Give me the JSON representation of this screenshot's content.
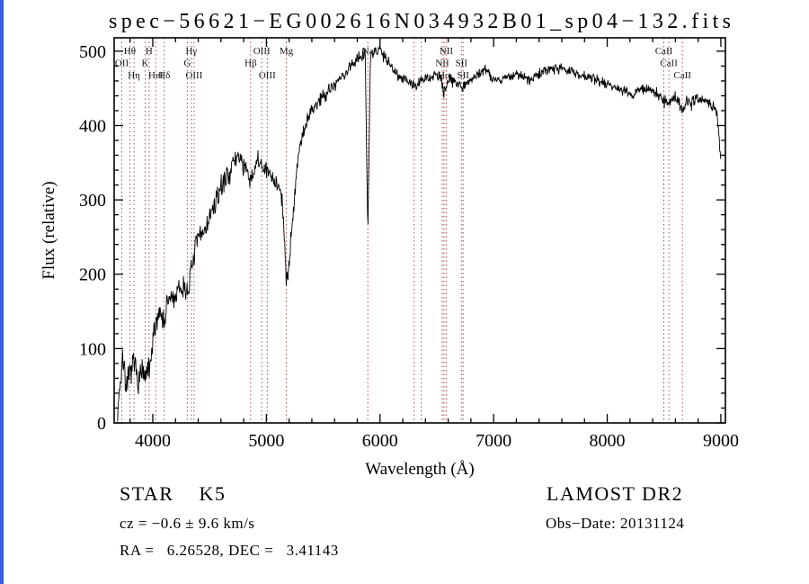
{
  "colors": {
    "background": "#ffffff",
    "spectrum": "#000000",
    "feature_lines": "#9c4f4f",
    "edge_strip": "#3b5ce0"
  },
  "footer": {
    "class_label": "STAR    K5",
    "survey": "LAMOST DR2",
    "cz": "cz = −0.6 ± 9.6 km/s",
    "obs_date": "Obs−Date: 20131124",
    "coords": "RA =   6.26528, DEC =   3.41143"
  },
  "chart_data": {
    "type": "line",
    "title": "spec−56621−EG002616N034932B01_sp04−132.fits",
    "xlabel": "Wavelength (Å)",
    "ylabel": "Flux (relative)",
    "xlim": [
      3660,
      9040
    ],
    "ylim": [
      0,
      518
    ],
    "xticks": [
      4000,
      5000,
      6000,
      7000,
      8000,
      9000
    ],
    "yticks": [
      0,
      100,
      200,
      300,
      400,
      500
    ],
    "x_minor_step": 200,
    "y_minor_step": 20,
    "grid": false,
    "legend_position": "none",
    "line_color": "#000000",
    "feature_line_color": "#9c4f4f",
    "spectral_lines": [
      {
        "label": "Hθ",
        "wavelength": 3798,
        "row": 0
      },
      {
        "label": "H",
        "wavelength": 3968,
        "row": 0
      },
      {
        "label": "Hγ",
        "wavelength": 4340,
        "row": 0
      },
      {
        "label": "OIII",
        "wavelength": 4959,
        "row": 0
      },
      {
        "label": "Mg",
        "wavelength": 5175,
        "row": 0
      },
      {
        "label": "Na",
        "wavelength": 5893,
        "row": 0
      },
      {
        "label": "NII",
        "wavelength": 6583,
        "row": 0
      },
      {
        "label": "CaII",
        "wavelength": 8498,
        "row": 0
      },
      {
        "label": "OII",
        "wavelength": 3727,
        "row": 1
      },
      {
        "label": "K",
        "wavelength": 3933,
        "row": 1
      },
      {
        "label": "G",
        "wavelength": 4304,
        "row": 1
      },
      {
        "label": "Hβ",
        "wavelength": 4861,
        "row": 1
      },
      {
        "label": "NII",
        "wavelength": 6548,
        "row": 1
      },
      {
        "label": "SII",
        "wavelength": 6716,
        "row": 1
      },
      {
        "label": "CaII",
        "wavelength": 8542,
        "row": 1
      },
      {
        "label": "Hη",
        "wavelength": 3835,
        "row": 2
      },
      {
        "label": "HeI",
        "wavelength": 4026,
        "row": 2
      },
      {
        "label": "Hδ",
        "wavelength": 4101,
        "row": 2
      },
      {
        "label": "OIII",
        "wavelength": 4363,
        "row": 2
      },
      {
        "label": "OIII",
        "wavelength": 5007,
        "row": 2
      },
      {
        "label": "Hα",
        "wavelength": 6563,
        "row": 2
      },
      {
        "label": "SII",
        "wavelength": 6731,
        "row": 2
      },
      {
        "label": "CaII",
        "wavelength": 8662,
        "row": 2
      },
      {
        "label": "",
        "wavelength": 6300,
        "row": 0
      },
      {
        "label": "",
        "wavelength": 6363,
        "row": 0
      }
    ],
    "spectrum_envelope": [
      [
        3690,
        5
      ],
      [
        3700,
        40
      ],
      [
        3715,
        55
      ],
      [
        3730,
        75
      ],
      [
        3745,
        88
      ],
      [
        3760,
        55
      ],
      [
        3775,
        45
      ],
      [
        3790,
        60
      ],
      [
        3810,
        70
      ],
      [
        3830,
        80
      ],
      [
        3850,
        70
      ],
      [
        3870,
        60
      ],
      [
        3890,
        64
      ],
      [
        3910,
        70
      ],
      [
        3933,
        52
      ],
      [
        3950,
        74
      ],
      [
        3970,
        66
      ],
      [
        3990,
        92
      ],
      [
        4010,
        118
      ],
      [
        4030,
        138
      ],
      [
        4055,
        150
      ],
      [
        4080,
        147
      ],
      [
        4101,
        132
      ],
      [
        4125,
        158
      ],
      [
        4150,
        168
      ],
      [
        4180,
        167
      ],
      [
        4210,
        171
      ],
      [
        4240,
        179
      ],
      [
        4270,
        182
      ],
      [
        4304,
        177
      ],
      [
        4340,
        204
      ],
      [
        4370,
        232
      ],
      [
        4400,
        247
      ],
      [
        4440,
        257
      ],
      [
        4480,
        267
      ],
      [
        4520,
        284
      ],
      [
        4560,
        297
      ],
      [
        4600,
        317
      ],
      [
        4640,
        329
      ],
      [
        4680,
        340
      ],
      [
        4720,
        351
      ],
      [
        4755,
        362
      ],
      [
        4790,
        350
      ],
      [
        4825,
        337
      ],
      [
        4861,
        321
      ],
      [
        4895,
        344
      ],
      [
        4930,
        351
      ],
      [
        4965,
        344
      ],
      [
        5000,
        338
      ],
      [
        5035,
        332
      ],
      [
        5070,
        327
      ],
      [
        5105,
        321
      ],
      [
        5140,
        297
      ],
      [
        5175,
        192
      ],
      [
        5205,
        224
      ],
      [
        5240,
        294
      ],
      [
        5275,
        354
      ],
      [
        5310,
        384
      ],
      [
        5350,
        404
      ],
      [
        5395,
        419
      ],
      [
        5440,
        429
      ],
      [
        5490,
        439
      ],
      [
        5540,
        447
      ],
      [
        5590,
        454
      ],
      [
        5640,
        461
      ],
      [
        5690,
        469
      ],
      [
        5740,
        479
      ],
      [
        5790,
        489
      ],
      [
        5835,
        495
      ],
      [
        5870,
        499
      ],
      [
        5893,
        255
      ],
      [
        5915,
        491
      ],
      [
        5950,
        497
      ],
      [
        5990,
        504
      ],
      [
        6030,
        497
      ],
      [
        6070,
        487
      ],
      [
        6110,
        477
      ],
      [
        6160,
        469
      ],
      [
        6210,
        463
      ],
      [
        6260,
        459
      ],
      [
        6300,
        451
      ],
      [
        6340,
        457
      ],
      [
        6390,
        462
      ],
      [
        6440,
        465
      ],
      [
        6490,
        468
      ],
      [
        6530,
        465
      ],
      [
        6563,
        441
      ],
      [
        6600,
        463
      ],
      [
        6650,
        461
      ],
      [
        6700,
        457
      ],
      [
        6731,
        451
      ],
      [
        6780,
        461
      ],
      [
        6830,
        465
      ],
      [
        6880,
        471
      ],
      [
        6930,
        477
      ],
      [
        6980,
        465
      ],
      [
        7030,
        461
      ],
      [
        7080,
        463
      ],
      [
        7140,
        466
      ],
      [
        7200,
        469
      ],
      [
        7260,
        465
      ],
      [
        7320,
        461
      ],
      [
        7380,
        467
      ],
      [
        7440,
        473
      ],
      [
        7500,
        477
      ],
      [
        7560,
        479
      ],
      [
        7620,
        476
      ],
      [
        7680,
        472
      ],
      [
        7740,
        469
      ],
      [
        7800,
        467
      ],
      [
        7860,
        464
      ],
      [
        7920,
        461
      ],
      [
        7980,
        457
      ],
      [
        8040,
        454
      ],
      [
        8100,
        451
      ],
      [
        8160,
        445
      ],
      [
        8220,
        439
      ],
      [
        8280,
        449
      ],
      [
        8340,
        449
      ],
      [
        8400,
        446
      ],
      [
        8460,
        442
      ],
      [
        8498,
        431
      ],
      [
        8520,
        436
      ],
      [
        8542,
        428
      ],
      [
        8580,
        438
      ],
      [
        8620,
        435
      ],
      [
        8662,
        420
      ],
      [
        8700,
        436
      ],
      [
        8740,
        429
      ],
      [
        8780,
        438
      ],
      [
        8820,
        435
      ],
      [
        8860,
        432
      ],
      [
        8900,
        429
      ],
      [
        8940,
        426
      ],
      [
        8965,
        419
      ],
      [
        8985,
        388
      ],
      [
        9000,
        350
      ]
    ],
    "noise_profile": [
      [
        3690,
        17
      ],
      [
        4300,
        14
      ],
      [
        5000,
        12
      ],
      [
        5600,
        9
      ],
      [
        6200,
        7
      ],
      [
        7000,
        6
      ],
      [
        8000,
        6
      ],
      [
        9000,
        7
      ]
    ]
  }
}
